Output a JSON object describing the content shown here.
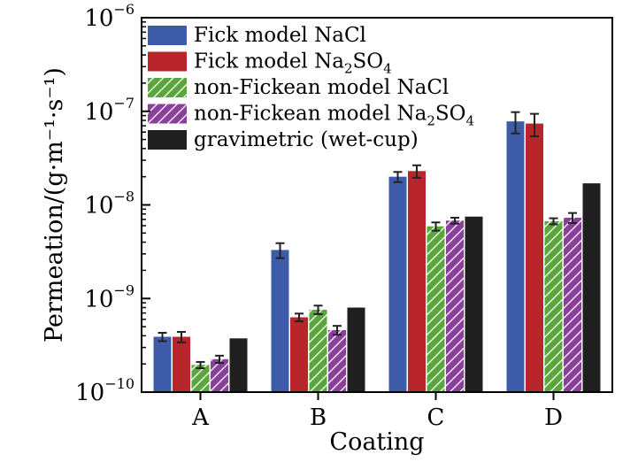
{
  "chart_data": {
    "type": "bar",
    "title": "",
    "xlabel": "Coating",
    "ylabel": "Permeation/(g·m⁻¹·s⁻¹)",
    "yscale": "log",
    "ylim": [
      1e-10,
      1e-06
    ],
    "yticks": [
      {
        "value": 1e-10,
        "base": "10",
        "exp": "−10"
      },
      {
        "value": 1e-09,
        "base": "10",
        "exp": "−9"
      },
      {
        "value": 1e-08,
        "base": "10",
        "exp": "−8"
      },
      {
        "value": 1e-07,
        "base": "10",
        "exp": "−7"
      },
      {
        "value": 1e-06,
        "base": "10",
        "exp": "−6"
      }
    ],
    "categories": [
      "A",
      "B",
      "C",
      "D"
    ],
    "legend_position": "top-left",
    "grid": false,
    "series": [
      {
        "name": "Fick model NaCl",
        "legend_main": "Fick model NaCl",
        "legend_sub": "",
        "legend_tail": "",
        "color": "#3d5ba9",
        "pattern": "solid",
        "values": [
          3.9e-10,
          3.3e-09,
          2e-08,
          7.8e-08
        ],
        "errors": [
          4e-11,
          6e-10,
          2.5e-09,
          2e-08
        ]
      },
      {
        "name": "Fick model Na2SO4",
        "legend_main": "Fick model Na",
        "legend_sub": "2",
        "legend_tail": "SO",
        "legend_sub2": "4",
        "color": "#b8262c",
        "pattern": "solid",
        "values": [
          3.9e-10,
          6.3e-10,
          2.3e-08,
          7.4e-08
        ],
        "errors": [
          5e-11,
          6e-11,
          3.5e-09,
          2e-08
        ]
      },
      {
        "name": "non-Fickean model NaCl",
        "legend_main": "non-Fickean model NaCl",
        "legend_sub": "",
        "legend_tail": "",
        "color": "#5aa63c",
        "pattern": "hatch",
        "values": [
          1.95e-10,
          7.6e-10,
          5.9e-09,
          6.7e-09
        ],
        "errors": [
          1.5e-11,
          8e-11,
          6e-10,
          5e-10
        ]
      },
      {
        "name": "non-Fickean model Na2SO4",
        "legend_main": "non-Fickean model Na",
        "legend_sub": "2",
        "legend_tail": "SO",
        "legend_sub2": "4",
        "color": "#8a3f9b",
        "pattern": "hatch",
        "values": [
          2.25e-10,
          4.6e-10,
          6.8e-09,
          7.3e-09
        ],
        "errors": [
          2e-11,
          5e-11,
          5e-10,
          9e-10
        ]
      },
      {
        "name": "gravimetric (wet-cup)",
        "legend_main": "gravimetric (wet-cup)",
        "legend_sub": "",
        "legend_tail": "",
        "color": "#1f1f1f",
        "pattern": "solid",
        "values": [
          3.75e-10,
          8e-10,
          7.5e-09,
          1.7e-08
        ],
        "errors": [
          0,
          0,
          0,
          0
        ]
      }
    ]
  }
}
